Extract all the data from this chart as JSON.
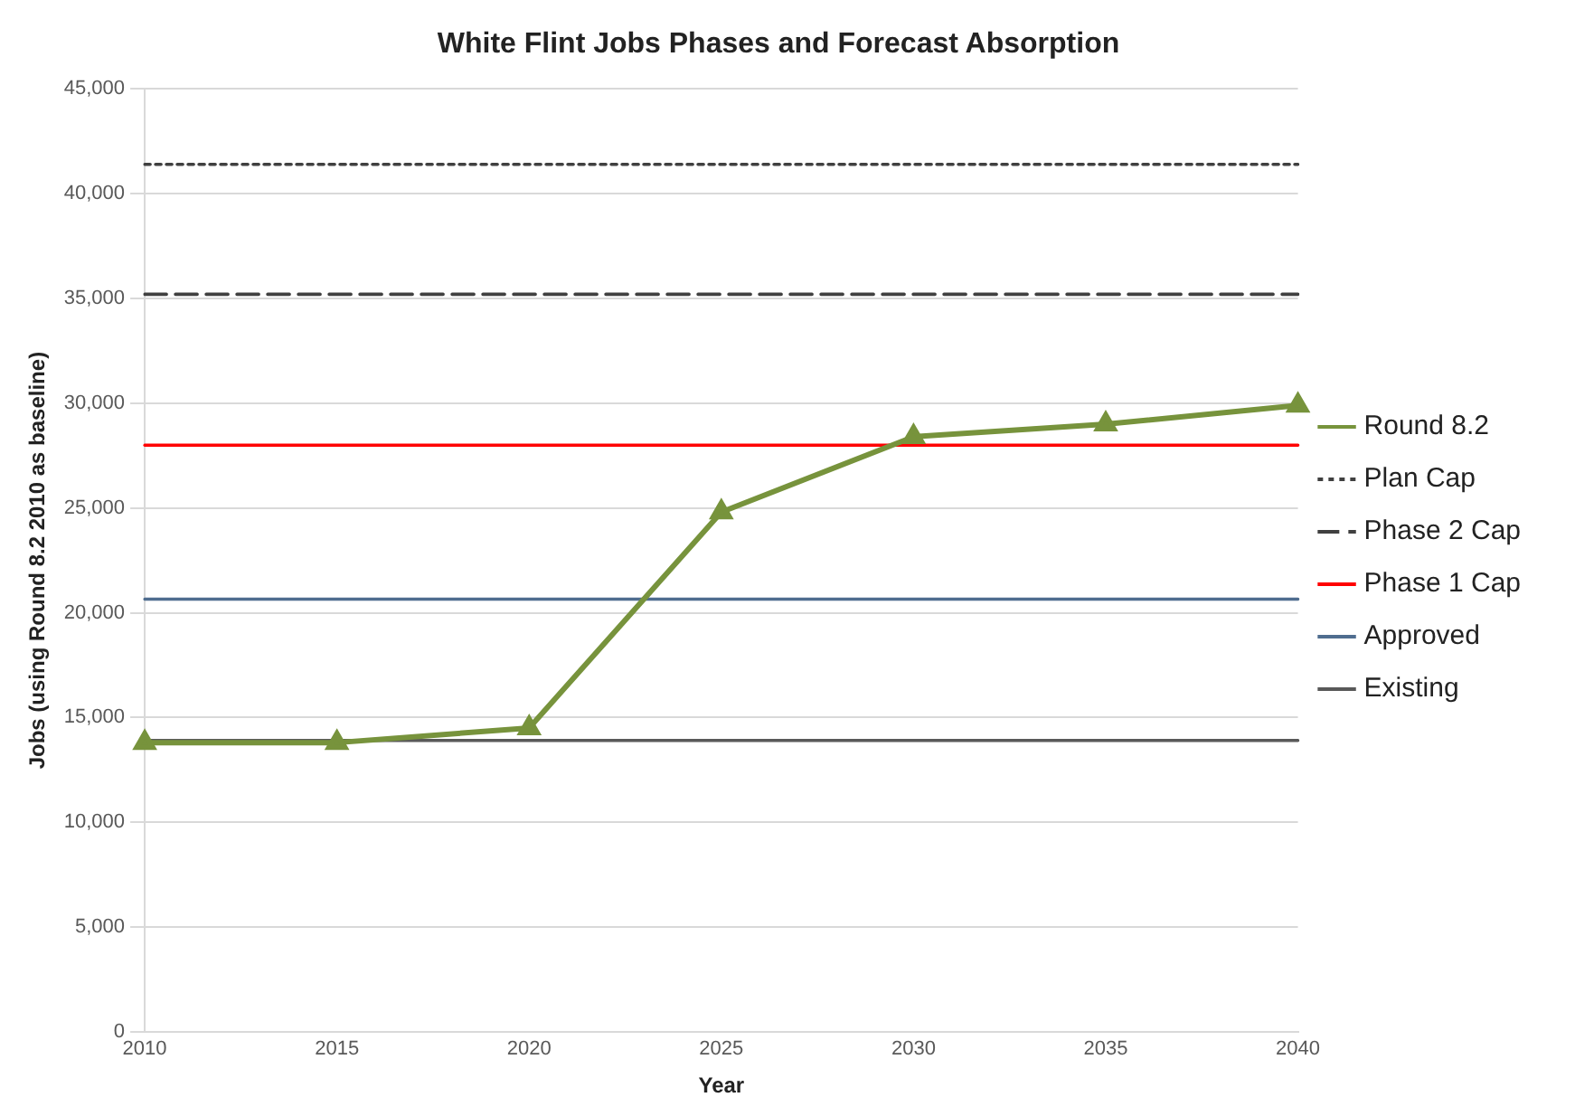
{
  "chart_data": {
    "type": "line",
    "title": "White Flint Jobs Phases and Forecast Absorption",
    "xlabel": "Year",
    "ylabel": "Jobs (using Round 8.2 2010 as baseline)",
    "categories": [
      "2010",
      "2015",
      "2020",
      "2025",
      "2030",
      "2035",
      "2040"
    ],
    "series": [
      {
        "name": "Round 8.2",
        "color": "#77933c",
        "marker": "triangle",
        "line_style": "solid",
        "values": [
          13800,
          13800,
          14500,
          24800,
          28400,
          29000,
          29900
        ]
      },
      {
        "name": "Plan Cap",
        "color": "#404040",
        "marker": "none",
        "line_style": "dotted",
        "values": [
          41400,
          41400,
          41400,
          41400,
          41400,
          41400,
          41400
        ]
      },
      {
        "name": "Phase 2 Cap",
        "color": "#404040",
        "marker": "none",
        "line_style": "dashed",
        "values": [
          35200,
          35200,
          35200,
          35200,
          35200,
          35200,
          35200
        ]
      },
      {
        "name": "Phase 1 Cap",
        "color": "#ff0000",
        "marker": "none",
        "line_style": "solid",
        "values": [
          28000,
          28000,
          28000,
          28000,
          28000,
          28000,
          28000
        ]
      },
      {
        "name": "Approved",
        "color": "#4f6d8f",
        "marker": "none",
        "line_style": "solid",
        "values": [
          20650,
          20650,
          20650,
          20650,
          20650,
          20650,
          20650
        ]
      },
      {
        "name": "Existing",
        "color": "#595959",
        "marker": "none",
        "line_style": "solid",
        "values": [
          13900,
          13900,
          13900,
          13900,
          13900,
          13900,
          13900
        ]
      }
    ],
    "ylim": [
      0,
      45000
    ],
    "yticks": [
      {
        "value": 0,
        "label": "0"
      },
      {
        "value": 5000,
        "label": "5,000"
      },
      {
        "value": 10000,
        "label": "10,000"
      },
      {
        "value": 15000,
        "label": "15,000"
      },
      {
        "value": 20000,
        "label": "20,000"
      },
      {
        "value": 25000,
        "label": "25,000"
      },
      {
        "value": 30000,
        "label": "30,000"
      },
      {
        "value": 35000,
        "label": "35,000"
      },
      {
        "value": 40000,
        "label": "40,000"
      },
      {
        "value": 45000,
        "label": "45,000"
      }
    ],
    "grid": "y",
    "legend": "right"
  }
}
